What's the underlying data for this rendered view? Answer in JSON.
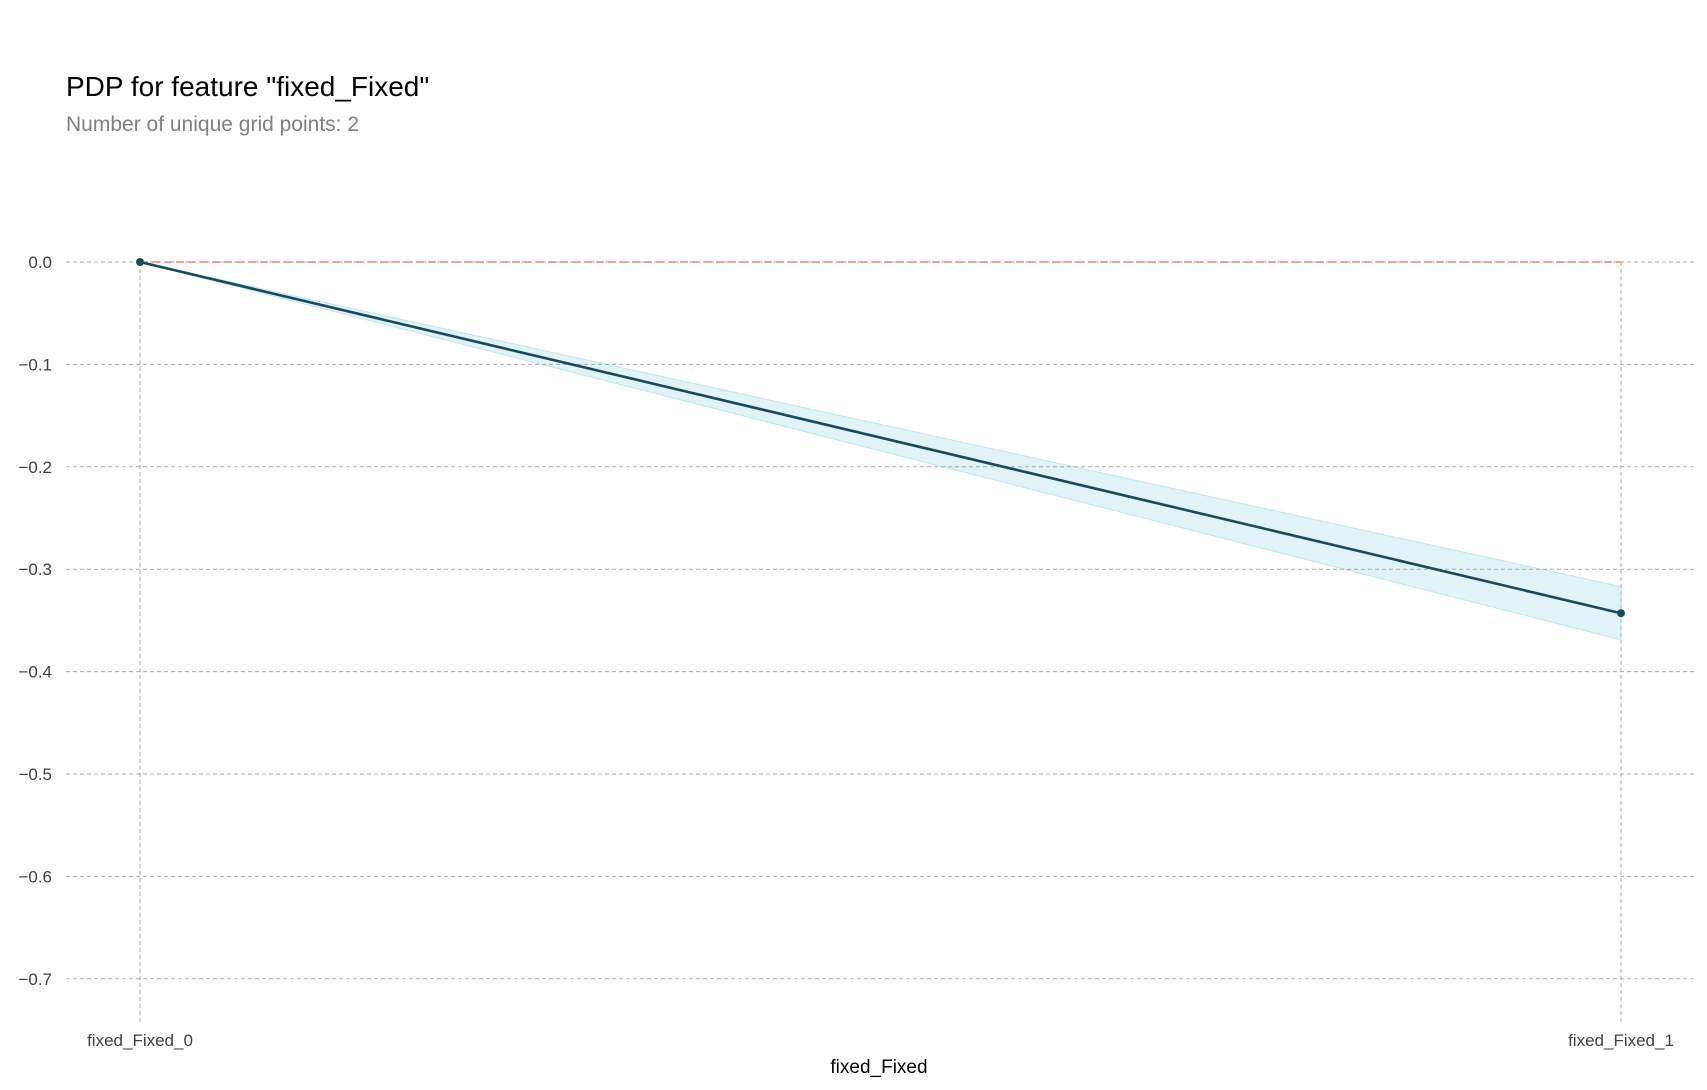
{
  "chart_data": {
    "type": "line",
    "title": "PDP for feature \"fixed_Fixed\"",
    "subtitle": "Number of unique grid points: 2",
    "xlabel": "fixed_Fixed",
    "ylabel": "",
    "categories": [
      "fixed_Fixed_0",
      "fixed_Fixed_1"
    ],
    "series": [
      {
        "values": [
          0.0,
          -0.343
        ],
        "upper": [
          0.0,
          -0.317
        ],
        "lower": [
          0.0,
          -0.369
        ]
      }
    ],
    "reference_line": 0.0,
    "ylim": [
      -0.74,
      0.0
    ],
    "yticks": [
      0.0,
      -0.1,
      -0.2,
      -0.3,
      -0.4,
      -0.5,
      -0.6,
      -0.7
    ],
    "ytick_labels": [
      "0.0",
      "−0.1",
      "−0.2",
      "−0.3",
      "−0.4",
      "−0.5",
      "−0.6",
      "−0.7"
    ],
    "grid": true,
    "colors": {
      "line": "#1a4a5c",
      "band": "#66c2d7",
      "reference": "#e8866c",
      "grid": "#a9a9a9"
    }
  }
}
